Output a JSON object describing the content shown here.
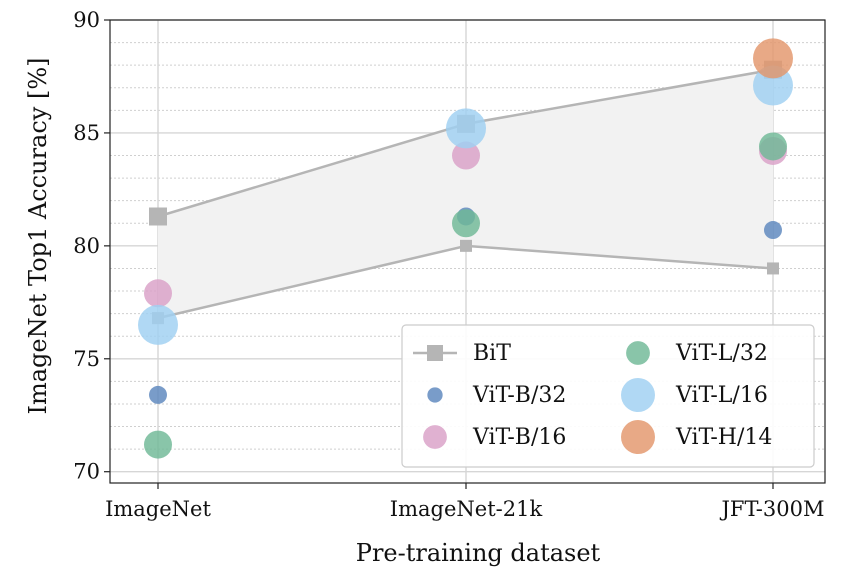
{
  "chart_data": {
    "type": "scatter",
    "title": "",
    "xlabel": "Pre-training dataset",
    "ylabel": "ImageNet Top1 Accuracy [%]",
    "categories": [
      "ImageNet",
      "ImageNet-21k",
      "JFT-300M"
    ],
    "ylim": [
      69.5,
      90
    ],
    "yticks": [
      "70",
      "75",
      "80",
      "85",
      "90"
    ],
    "grid": true,
    "legend_position": "lower-right",
    "bit_band": {
      "name": "BiT",
      "color": "#b5b5b5",
      "fill": "#f2f2f2",
      "upper": [
        81.3,
        85.4,
        87.8
      ],
      "lower": [
        76.8,
        80.0,
        79.0
      ]
    },
    "series": [
      {
        "name": "ViT-B/32",
        "color": "#5b86bd",
        "size": 9,
        "values": [
          73.4,
          81.3,
          80.7
        ]
      },
      {
        "name": "ViT-B/16",
        "color": "#d9a0c7",
        "size": 14,
        "values": [
          77.9,
          84.0,
          84.2
        ]
      },
      {
        "name": "ViT-L/32",
        "color": "#6fb896",
        "size": 14,
        "values": [
          71.2,
          81.0,
          84.4
        ]
      },
      {
        "name": "ViT-L/16",
        "color": "#9fd0f2",
        "size": 20,
        "values": [
          76.5,
          85.2,
          87.1
        ]
      },
      {
        "name": "ViT-H/14",
        "color": "#e3966b",
        "size": 20,
        "values": [
          null,
          null,
          88.3
        ]
      }
    ],
    "legend": {
      "entries": [
        "BiT",
        "ViT-L/32",
        "ViT-B/32",
        "ViT-L/16",
        "ViT-B/16",
        "ViT-H/14"
      ]
    }
  }
}
